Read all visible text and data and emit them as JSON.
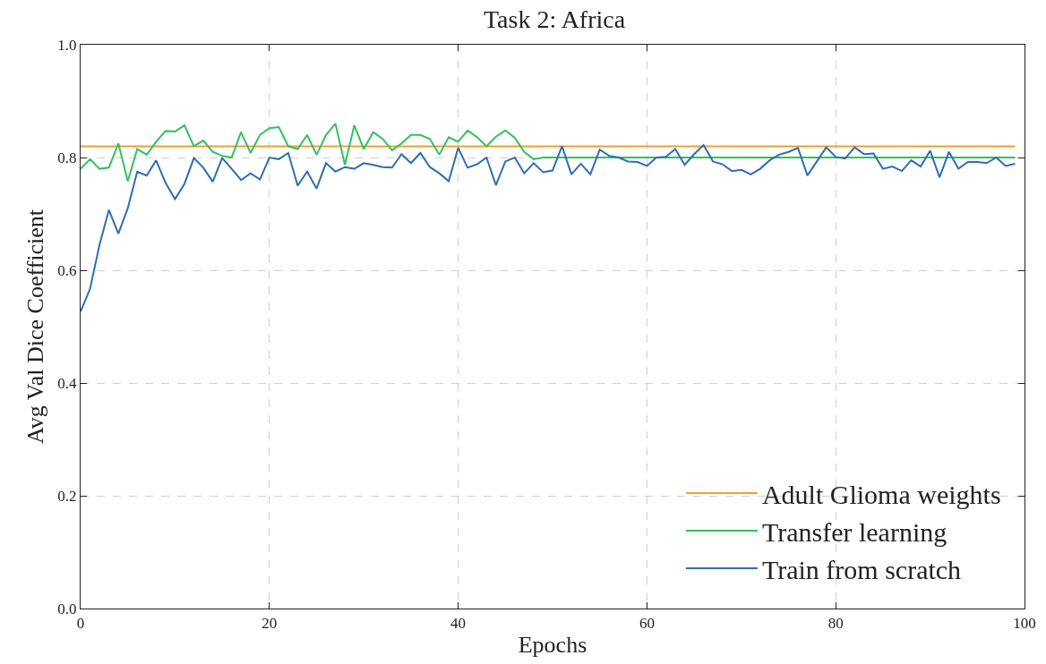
{
  "chart_data": {
    "type": "line",
    "title": "Task 2: Africa",
    "xlabel": "Epochs",
    "ylabel": "Avg Val Dice Coefficient",
    "xlim": [
      0,
      100
    ],
    "xticks": [
      0,
      20,
      40,
      60,
      80,
      100
    ],
    "ylim": [
      0,
      1
    ],
    "yticks": [
      {
        "value": 0,
        "label": "0.0"
      },
      0.2,
      0.4,
      0.6,
      0.8,
      {
        "value": 1,
        "label": "1.0"
      }
    ],
    "grid": true,
    "legend": "bottom right",
    "marker": "none",
    "line_style": "solid",
    "series": [
      {
        "name": "Adult Glioma weights",
        "color": "#f5a02a",
        "x": [
          0,
          99
        ],
        "values": [
          0.82,
          0.82
        ]
      },
      {
        "name": "Transfer learning",
        "color": "#2ec35a",
        "x": [
          0,
          1,
          2,
          3,
          4,
          5,
          6,
          7,
          8,
          9,
          10,
          11,
          12,
          13,
          14,
          15,
          16,
          17,
          18,
          19,
          20,
          21,
          22,
          23,
          24,
          25,
          26,
          27,
          28,
          29,
          30,
          31,
          32,
          33,
          34,
          35,
          36,
          37,
          38,
          39,
          40,
          41,
          42,
          43,
          44,
          45,
          46,
          47,
          48,
          49,
          99
        ],
        "values": [
          0.78,
          0.797,
          0.78,
          0.782,
          0.825,
          0.758,
          0.815,
          0.805,
          0.828,
          0.847,
          0.846,
          0.857,
          0.82,
          0.83,
          0.81,
          0.803,
          0.8,
          0.845,
          0.808,
          0.84,
          0.852,
          0.854,
          0.82,
          0.815,
          0.84,
          0.805,
          0.84,
          0.86,
          0.787,
          0.857,
          0.815,
          0.845,
          0.833,
          0.813,
          0.825,
          0.84,
          0.84,
          0.833,
          0.805,
          0.836,
          0.828,
          0.848,
          0.836,
          0.82,
          0.837,
          0.848,
          0.835,
          0.81,
          0.797,
          0.8,
          0.8
        ]
      },
      {
        "name": "Train from scratch",
        "color": "#2e6db4",
        "x": [
          0,
          1,
          2,
          3,
          4,
          5,
          6,
          7,
          8,
          9,
          10,
          11,
          12,
          13,
          14,
          15,
          16,
          17,
          18,
          19,
          20,
          21,
          22,
          23,
          24,
          25,
          26,
          27,
          28,
          29,
          30,
          31,
          32,
          33,
          34,
          35,
          36,
          37,
          38,
          39,
          40,
          41,
          42,
          43,
          44,
          45,
          46,
          47,
          48,
          49,
          50,
          51,
          52,
          53,
          54,
          55,
          56,
          57,
          58,
          59,
          60,
          61,
          62,
          63,
          64,
          65,
          66,
          67,
          68,
          69,
          70,
          71,
          72,
          73,
          74,
          75,
          76,
          77,
          78,
          79,
          80,
          81,
          82,
          83,
          84,
          85,
          86,
          87,
          88,
          89,
          90,
          91,
          92,
          93,
          94,
          95,
          96,
          97,
          98,
          99
        ],
        "values": [
          0.527,
          0.567,
          0.645,
          0.707,
          0.665,
          0.71,
          0.775,
          0.768,
          0.795,
          0.755,
          0.726,
          0.753,
          0.799,
          0.782,
          0.757,
          0.799,
          0.78,
          0.76,
          0.772,
          0.761,
          0.8,
          0.797,
          0.808,
          0.75,
          0.775,
          0.745,
          0.79,
          0.775,
          0.783,
          0.78,
          0.79,
          0.787,
          0.783,
          0.782,
          0.806,
          0.79,
          0.808,
          0.783,
          0.772,
          0.758,
          0.817,
          0.782,
          0.788,
          0.8,
          0.751,
          0.793,
          0.8,
          0.772,
          0.79,
          0.774,
          0.777,
          0.82,
          0.77,
          0.789,
          0.77,
          0.814,
          0.803,
          0.8,
          0.793,
          0.792,
          0.785,
          0.8,
          0.801,
          0.815,
          0.787,
          0.806,
          0.822,
          0.793,
          0.788,
          0.776,
          0.778,
          0.77,
          0.78,
          0.795,
          0.805,
          0.81,
          0.817,
          0.768,
          0.793,
          0.818,
          0.801,
          0.798,
          0.818,
          0.806,
          0.807,
          0.78,
          0.784,
          0.776,
          0.795,
          0.784,
          0.812,
          0.765,
          0.81,
          0.78,
          0.792,
          0.792,
          0.79,
          0.8,
          0.785,
          0.789
        ]
      }
    ]
  }
}
